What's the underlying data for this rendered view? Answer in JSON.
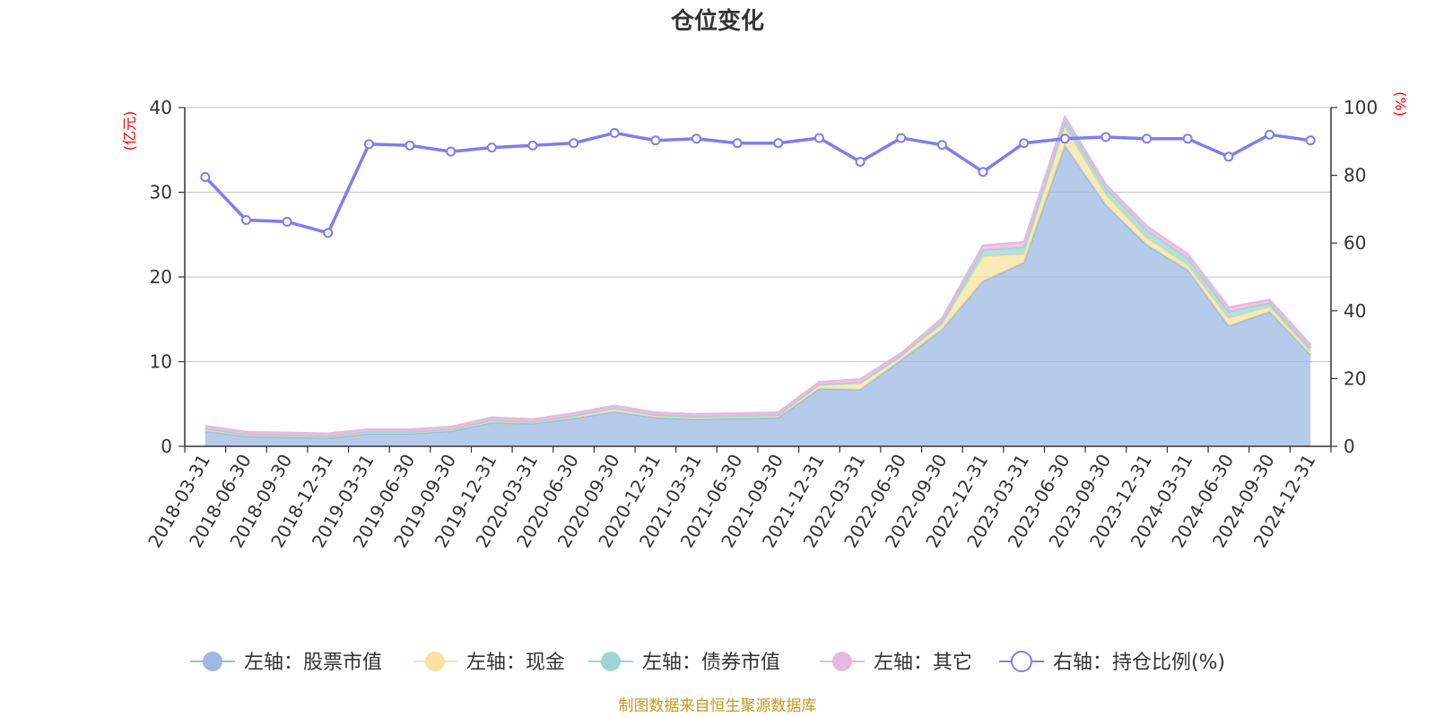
{
  "source_note": "制图数据来自恒生聚源数据库",
  "chart_data": {
    "type": "area",
    "title": "仓位变化",
    "left_unit": "(亿元)",
    "right_unit": "(%)",
    "left_ylim": [
      0,
      40
    ],
    "right_ylim": [
      0,
      100
    ],
    "left_ticks": [
      "0",
      "10",
      "20",
      "30",
      "40"
    ],
    "right_ticks": [
      "0",
      "20",
      "40",
      "60",
      "80",
      "100"
    ],
    "grid": true,
    "legend_position": "bottom",
    "categories": [
      "2018-03-31",
      "2018-06-30",
      "2018-09-30",
      "2018-12-31",
      "2019-03-31",
      "2019-06-30",
      "2019-09-30",
      "2019-12-31",
      "2020-03-31",
      "2020-06-30",
      "2020-09-30",
      "2020-12-31",
      "2021-03-31",
      "2021-06-30",
      "2021-09-30",
      "2021-12-31",
      "2022-03-31",
      "2022-06-30",
      "2022-09-30",
      "2022-12-31",
      "2023-03-31",
      "2023-06-30",
      "2023-09-30",
      "2023-12-31",
      "2024-03-31",
      "2024-06-30",
      "2024-09-30",
      "2024-12-31"
    ],
    "stacked_series": [
      {
        "name": "左轴：股票市值",
        "color": "#9eb9e3",
        "values": [
          1.8,
          1.2,
          1.1,
          1.0,
          1.5,
          1.5,
          1.8,
          2.8,
          2.7,
          3.3,
          4.1,
          3.4,
          3.2,
          3.3,
          3.4,
          6.8,
          6.7,
          10.2,
          13.8,
          19.5,
          21.7,
          35.5,
          28.5,
          23.8,
          20.8,
          14.2,
          15.9,
          10.8
        ]
      },
      {
        "name": "左轴：现金",
        "color": "#f8e3a0",
        "values": [
          0.3,
          0.2,
          0.2,
          0.2,
          0.2,
          0.2,
          0.2,
          0.3,
          0.2,
          0.3,
          0.4,
          0.3,
          0.3,
          0.3,
          0.3,
          0.5,
          0.8,
          0.5,
          0.6,
          2.9,
          1.0,
          2.2,
          1.2,
          0.8,
          0.6,
          0.9,
          0.6,
          0.4
        ]
      },
      {
        "name": "左轴：债券市值",
        "color": "#9ed6d4",
        "values": [
          0.0,
          0.0,
          0.0,
          0.0,
          0.0,
          0.0,
          0.0,
          0.0,
          0.0,
          0.0,
          0.0,
          0.0,
          0.0,
          0.0,
          0.0,
          0.0,
          0.0,
          0.0,
          0.4,
          0.8,
          0.8,
          0.7,
          0.8,
          0.9,
          0.8,
          0.8,
          0.4,
          0.4
        ]
      },
      {
        "name": "左轴：其它",
        "color": "#e9b9dd",
        "values": [
          0.3,
          0.3,
          0.3,
          0.3,
          0.3,
          0.3,
          0.3,
          0.3,
          0.3,
          0.3,
          0.3,
          0.3,
          0.3,
          0.3,
          0.3,
          0.3,
          0.4,
          0.3,
          0.3,
          0.5,
          0.6,
          0.5,
          0.4,
          0.5,
          0.5,
          0.5,
          0.4,
          0.4
        ]
      }
    ],
    "line_series": {
      "name": "右轴：持仓比例(%)",
      "color": "#7b7ff0",
      "values": [
        79.5,
        66.8,
        66.3,
        63.0,
        89.2,
        88.8,
        87.0,
        88.2,
        88.8,
        89.5,
        92.5,
        90.3,
        90.8,
        89.5,
        89.5,
        91.0,
        84.0,
        91.0,
        89.0,
        81.0,
        89.5,
        90.8,
        91.3,
        90.8,
        90.8,
        85.5,
        92.0,
        90.3
      ]
    }
  }
}
